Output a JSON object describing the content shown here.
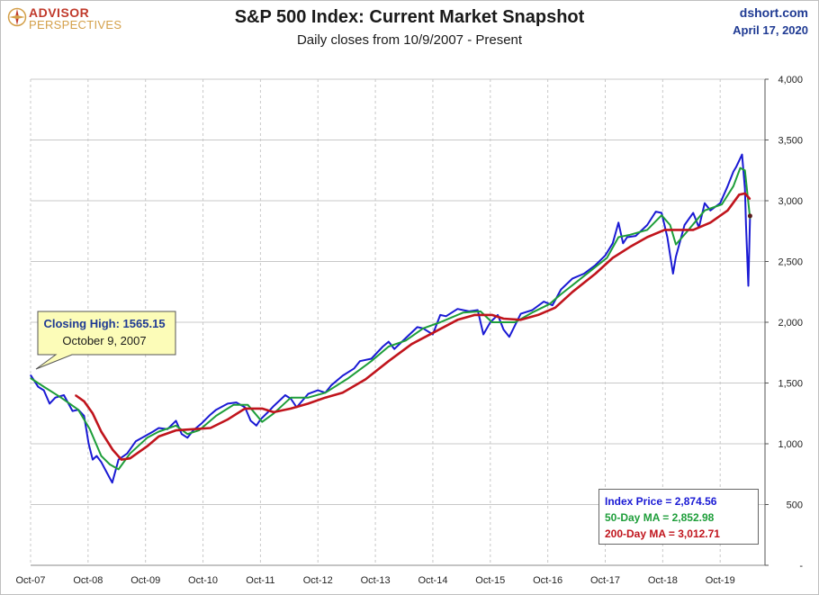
{
  "header": {
    "title": "S&P 500 Index: Current Market Snapshot",
    "subtitle": "Daily closes from 10/9/2007 - Present",
    "site": "dshort.com",
    "date": "April 17, 2020"
  },
  "logo": {
    "line1": "ADVISOR",
    "line2": "PERSPECTIVES"
  },
  "callout": {
    "line1": "Closing High: 1565.15",
    "line2": "October 9, 2007"
  },
  "legend": {
    "index_price": "Index Price = 2,874.56",
    "ma50": "50-Day MA = 2,852.98",
    "ma200": "200-Day MA = 3,012.71"
  },
  "colors": {
    "index": "#1a1ad4",
    "ma50": "#1e9e3a",
    "ma200": "#c0141c",
    "grid": "#c8c8c8",
    "callout_bg": "#fcfcb8"
  },
  "chart_data": {
    "type": "line",
    "title": "S&P 500 Index: Current Market Snapshot",
    "subtitle": "Daily closes from 10/9/2007 - Present",
    "x_ticks": [
      "Oct-07",
      "Oct-08",
      "Oct-09",
      "Oct-10",
      "Oct-11",
      "Oct-12",
      "Oct-13",
      "Oct-14",
      "Oct-15",
      "Oct-16",
      "Oct-17",
      "Oct-18",
      "Oct-19"
    ],
    "y_ticks": [
      "4,000",
      "3,500",
      "3,000",
      "2,500",
      "2,000",
      "1,500",
      "1,000",
      "500",
      "-"
    ],
    "ylim": [
      0,
      4000
    ],
    "y_axis_side": "right",
    "grid": true,
    "series": [
      {
        "name": "Index Price",
        "x": [
          2007.77,
          2007.9,
          2008.0,
          2008.1,
          2008.2,
          2008.35,
          2008.5,
          2008.6,
          2008.7,
          2008.78,
          2008.85,
          2008.92,
          2009.0,
          2009.1,
          2009.19,
          2009.3,
          2009.45,
          2009.6,
          2009.75,
          2009.9,
          2010.0,
          2010.15,
          2010.3,
          2010.4,
          2010.5,
          2010.6,
          2010.75,
          2010.9,
          2011.0,
          2011.2,
          2011.35,
          2011.5,
          2011.6,
          2011.7,
          2011.77,
          2011.9,
          2012.0,
          2012.2,
          2012.3,
          2012.4,
          2012.6,
          2012.77,
          2012.9,
          2013.0,
          2013.2,
          2013.4,
          2013.5,
          2013.7,
          2013.9,
          2014.0,
          2014.1,
          2014.3,
          2014.5,
          2014.6,
          2014.77,
          2014.9,
          2015.0,
          2015.2,
          2015.4,
          2015.55,
          2015.65,
          2015.77,
          2015.9,
          2016.0,
          2016.1,
          2016.3,
          2016.5,
          2016.7,
          2016.85,
          2017.0,
          2017.2,
          2017.4,
          2017.6,
          2017.77,
          2017.9,
          2018.0,
          2018.08,
          2018.15,
          2018.3,
          2018.5,
          2018.65,
          2018.75,
          2018.85,
          2018.95,
          2019.0,
          2019.15,
          2019.3,
          2019.4,
          2019.5,
          2019.6,
          2019.77,
          2019.9,
          2020.0,
          2020.05,
          2020.1,
          2020.15,
          2020.2,
          2020.22,
          2020.26,
          2020.29
        ],
        "y": [
          1565,
          1470,
          1440,
          1330,
          1380,
          1400,
          1270,
          1280,
          1230,
          1000,
          870,
          900,
          850,
          760,
          680,
          870,
          920,
          1020,
          1060,
          1100,
          1130,
          1120,
          1190,
          1080,
          1050,
          1110,
          1170,
          1240,
          1280,
          1330,
          1340,
          1300,
          1190,
          1150,
          1200,
          1260,
          1310,
          1400,
          1370,
          1300,
          1410,
          1440,
          1420,
          1480,
          1560,
          1620,
          1680,
          1700,
          1800,
          1840,
          1780,
          1870,
          1960,
          1950,
          1900,
          2060,
          2050,
          2110,
          2090,
          2100,
          1900,
          2000,
          2060,
          1940,
          1880,
          2070,
          2100,
          2170,
          2140,
          2270,
          2360,
          2400,
          2470,
          2550,
          2650,
          2820,
          2650,
          2700,
          2710,
          2800,
          2910,
          2900,
          2700,
          2400,
          2540,
          2800,
          2900,
          2780,
          2980,
          2920,
          2980,
          3120,
          3240,
          3280,
          3330,
          3380,
          3100,
          2800,
          2300,
          2874.56
        ]
      },
      {
        "name": "50-Day MA",
        "x": [
          2007.77,
          2008.0,
          2008.3,
          2008.6,
          2008.8,
          2009.0,
          2009.15,
          2009.3,
          2009.5,
          2009.8,
          2010.0,
          2010.3,
          2010.5,
          2010.7,
          2011.0,
          2011.3,
          2011.55,
          2011.8,
          2012.0,
          2012.3,
          2012.6,
          2012.9,
          2013.3,
          2013.7,
          2014.0,
          2014.3,
          2014.6,
          2014.9,
          2015.3,
          2015.6,
          2015.8,
          2016.0,
          2016.2,
          2016.5,
          2016.8,
          2017.0,
          2017.4,
          2017.8,
          2018.0,
          2018.2,
          2018.5,
          2018.75,
          2018.9,
          2019.0,
          2019.2,
          2019.5,
          2019.8,
          2020.0,
          2020.12,
          2020.2,
          2020.29
        ],
        "y": [
          1540,
          1470,
          1380,
          1280,
          1120,
          900,
          830,
          790,
          920,
          1050,
          1100,
          1150,
          1080,
          1110,
          1230,
          1320,
          1320,
          1180,
          1250,
          1380,
          1380,
          1420,
          1540,
          1680,
          1800,
          1850,
          1950,
          2000,
          2080,
          2090,
          2000,
          2000,
          2000,
          2080,
          2150,
          2230,
          2380,
          2530,
          2700,
          2720,
          2760,
          2880,
          2800,
          2640,
          2750,
          2920,
          2970,
          3120,
          3270,
          3250,
          2852.98
        ]
      },
      {
        "name": "200-Day MA",
        "x": [
          2008.55,
          2008.7,
          2008.85,
          2009.0,
          2009.2,
          2009.35,
          2009.5,
          2009.8,
          2010.0,
          2010.3,
          2010.6,
          2010.9,
          2011.2,
          2011.5,
          2011.8,
          2012.0,
          2012.3,
          2012.6,
          2012.9,
          2013.2,
          2013.6,
          2014.0,
          2014.4,
          2014.8,
          2015.2,
          2015.5,
          2015.8,
          2016.0,
          2016.3,
          2016.6,
          2016.9,
          2017.2,
          2017.6,
          2017.9,
          2018.2,
          2018.5,
          2018.8,
          2019.0,
          2019.3,
          2019.6,
          2019.9,
          2020.1,
          2020.2,
          2020.29
        ],
        "y": [
          1400,
          1350,
          1250,
          1100,
          950,
          870,
          880,
          980,
          1060,
          1110,
          1120,
          1130,
          1200,
          1290,
          1290,
          1260,
          1290,
          1330,
          1380,
          1420,
          1530,
          1680,
          1820,
          1920,
          2020,
          2060,
          2060,
          2030,
          2020,
          2060,
          2120,
          2250,
          2400,
          2530,
          2620,
          2700,
          2760,
          2760,
          2760,
          2820,
          2920,
          3050,
          3060,
          3012.71
        ]
      }
    ]
  }
}
